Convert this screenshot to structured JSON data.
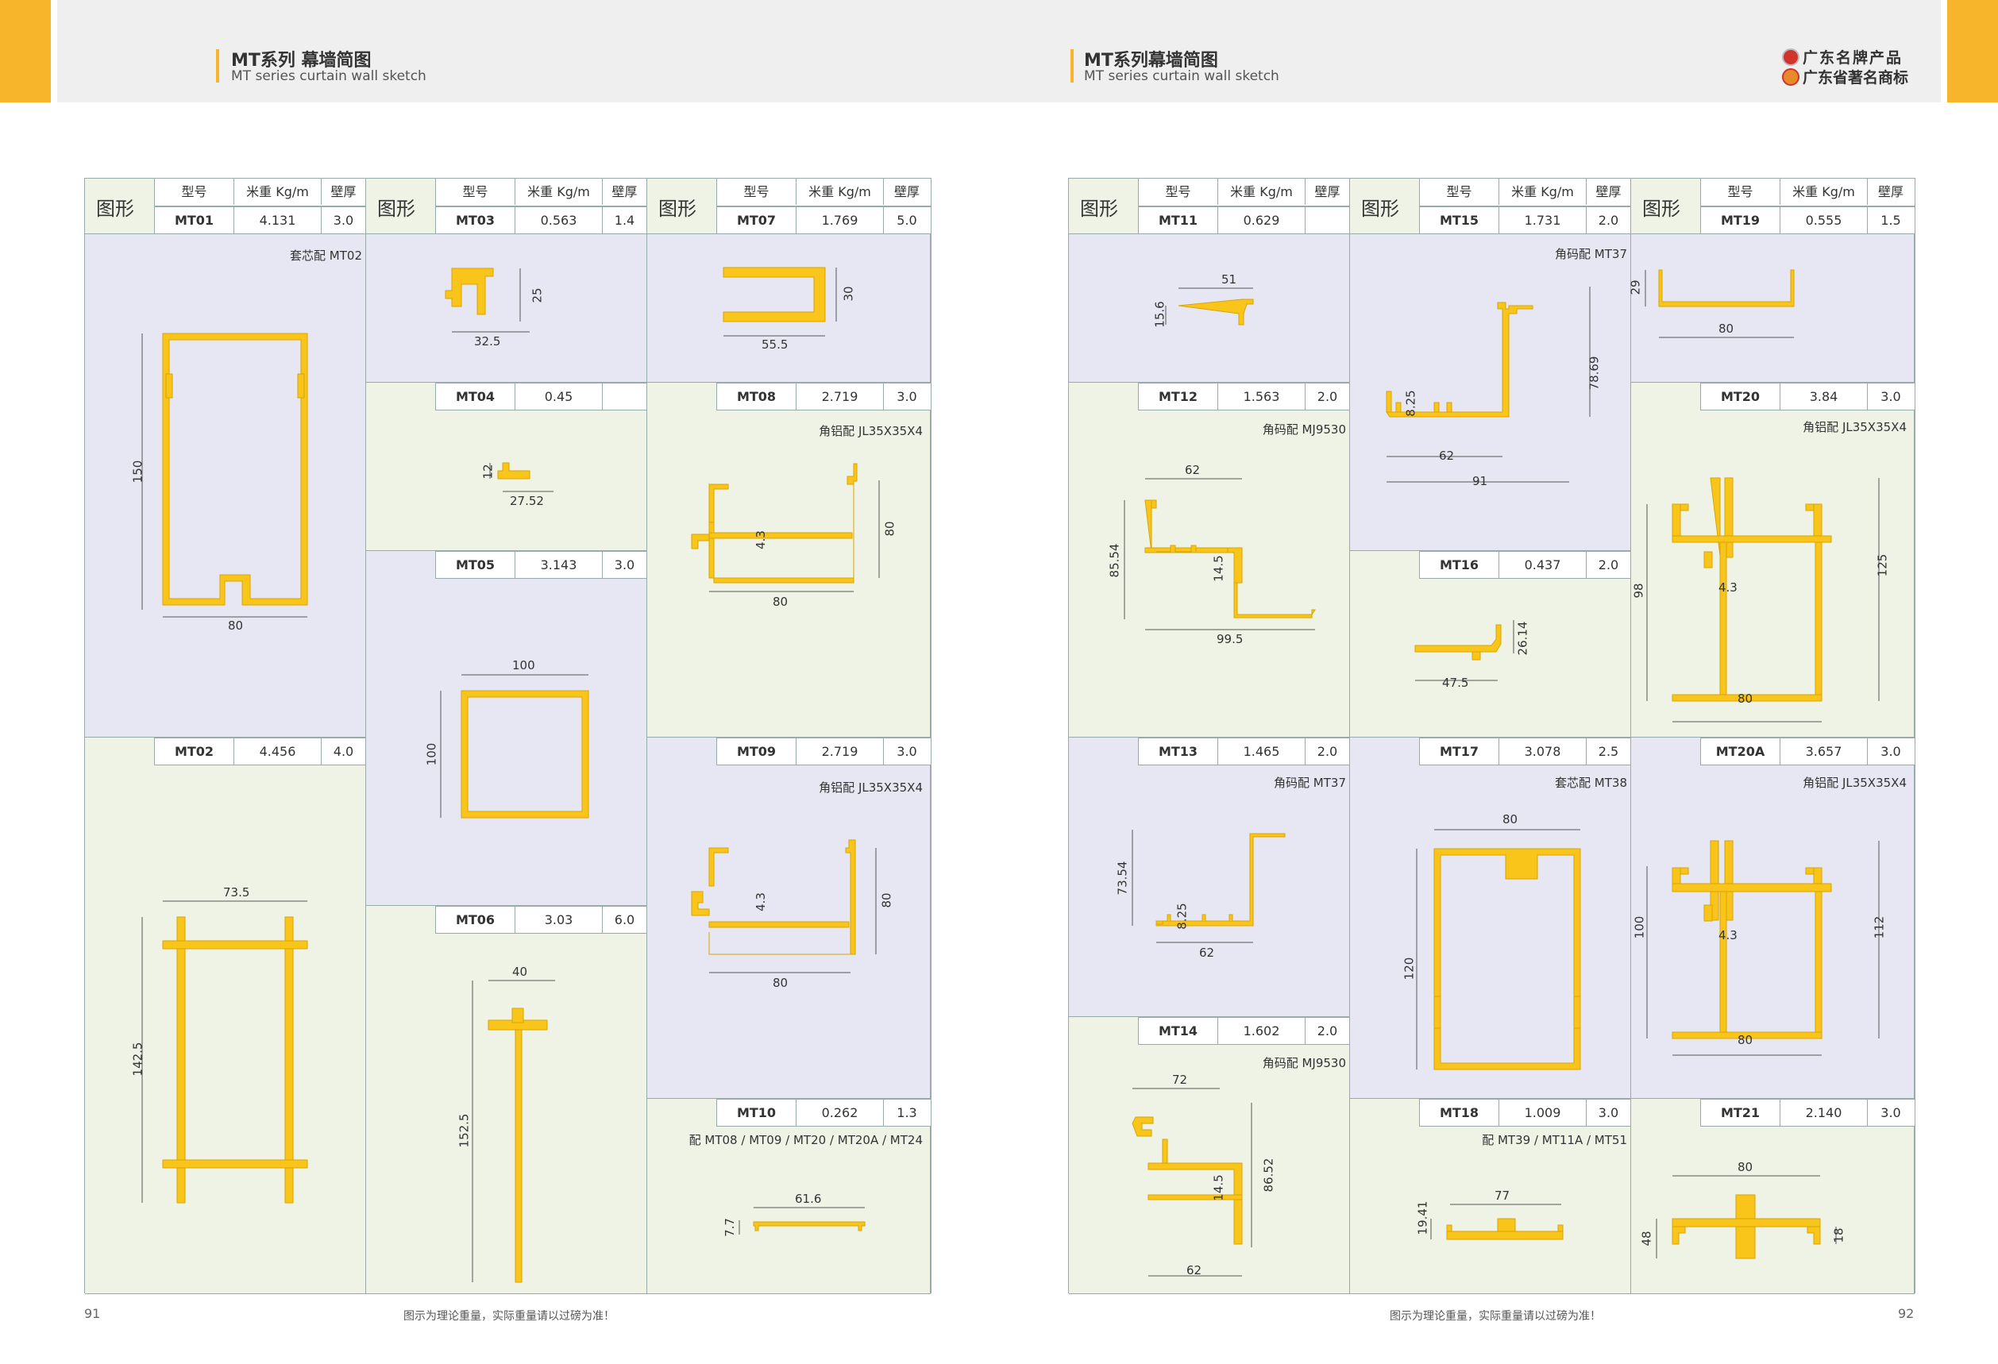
{
  "header": {
    "left_title_cn": "MT系列 幕墙简图",
    "left_title_en": "MT series curtain wall sketch",
    "right_title_cn": "MT系列幕墙简图",
    "right_title_en": "MT series curtain wall sketch",
    "brand_line1": "广东名牌产品",
    "brand_line2": "广东省著名商标"
  },
  "col_headers": {
    "shape": "图形",
    "model": "型号",
    "weight": "米重 Kg/m",
    "thickness": "壁厚"
  },
  "profiles": {
    "MT01": {
      "model": "MT01",
      "weight": "4.131",
      "thick": "3.0",
      "note": "套芯配 MT02",
      "d1": "150",
      "d2": "80"
    },
    "MT02": {
      "model": "MT02",
      "weight": "4.456",
      "thick": "4.0",
      "d1": "73.5",
      "d2": "142.5"
    },
    "MT03": {
      "model": "MT03",
      "weight": "0.563",
      "thick": "1.4",
      "d1": "25",
      "d2": "32.5"
    },
    "MT04": {
      "model": "MT04",
      "weight": "0.45",
      "thick": "",
      "d1": "12",
      "d2": "27.52"
    },
    "MT05": {
      "model": "MT05",
      "weight": "3.143",
      "thick": "3.0",
      "d1": "100",
      "d2": "100"
    },
    "MT06": {
      "model": "MT06",
      "weight": "3.03",
      "thick": "6.0",
      "d1": "40",
      "d2": "152.5"
    },
    "MT07": {
      "model": "MT07",
      "weight": "1.769",
      "thick": "5.0",
      "d1": "30",
      "d2": "55.5"
    },
    "MT08": {
      "model": "MT08",
      "weight": "2.719",
      "thick": "3.0",
      "note": "角铝配 JL35X35X4",
      "d1": "4.3",
      "d2": "80",
      "d3": "80"
    },
    "MT09": {
      "model": "MT09",
      "weight": "2.719",
      "thick": "3.0",
      "note": "角铝配 JL35X35X4",
      "d1": "4.3",
      "d2": "80",
      "d3": "80"
    },
    "MT10": {
      "model": "MT10",
      "weight": "0.262",
      "thick": "1.3",
      "note": "配 MT08 / MT09 / MT20 / MT20A / MT24",
      "d1": "61.6",
      "d2": "7.7"
    },
    "MT11": {
      "model": "MT11",
      "weight": "0.629",
      "thick": "",
      "d1": "51",
      "d2": "15.6"
    },
    "MT12": {
      "model": "MT12",
      "weight": "1.563",
      "thick": "2.0",
      "note": "角码配 MJ9530",
      "d1": "62",
      "d2": "85.54",
      "d3": "14.5",
      "d4": "99.5"
    },
    "MT13": {
      "model": "MT13",
      "weight": "1.465",
      "thick": "2.0",
      "note": "角码配 MT37",
      "d1": "73.54",
      "d2": "8.25",
      "d3": "62"
    },
    "MT14": {
      "model": "MT14",
      "weight": "1.602",
      "thick": "2.0",
      "note": "角码配 MJ9530",
      "d1": "72",
      "d2": "14.5",
      "d3": "86.52",
      "d4": "62"
    },
    "MT15": {
      "model": "MT15",
      "weight": "1.731",
      "thick": "2.0",
      "note": "角码配 MT37",
      "d1": "78.69",
      "d2": "8.25",
      "d3": "62",
      "d4": "91"
    },
    "MT16": {
      "model": "MT16",
      "weight": "0.437",
      "thick": "2.0",
      "d1": "26.14",
      "d2": "47.5"
    },
    "MT17": {
      "model": "MT17",
      "weight": "3.078",
      "thick": "2.5",
      "note": "套芯配 MT38",
      "d1": "80",
      "d2": "120"
    },
    "MT18": {
      "model": "MT18",
      "weight": "1.009",
      "thick": "3.0",
      "note": "配 MT39 / MT11A / MT51",
      "d1": "77",
      "d2": "19.41"
    },
    "MT19": {
      "model": "MT19",
      "weight": "0.555",
      "thick": "1.5",
      "d1": "29",
      "d2": "80"
    },
    "MT20": {
      "model": "MT20",
      "weight": "3.84",
      "thick": "3.0",
      "note": "角铝配 JL35X35X4",
      "d1": "125",
      "d2": "98",
      "d3": "4.3",
      "d4": "80"
    },
    "MT20A": {
      "model": "MT20A",
      "weight": "3.657",
      "thick": "3.0",
      "note": "角铝配 JL35X35X4",
      "d1": "112",
      "d2": "100",
      "d3": "4.3",
      "d4": "80"
    },
    "MT21": {
      "model": "MT21",
      "weight": "2.140",
      "thick": "3.0",
      "d1": "80",
      "d2": "48",
      "d3": "18"
    }
  },
  "footer": {
    "left_page": "91",
    "right_page": "92",
    "note": "图示为理论重量，实际重量请以过磅为准！"
  }
}
